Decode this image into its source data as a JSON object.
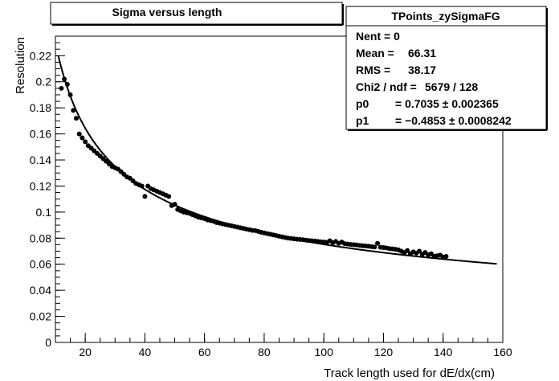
{
  "chart_data": {
    "type": "scatter",
    "title": "Sigma versus length",
    "xlabel": "Track length used for dE/dx(cm)",
    "ylabel": "Resolution",
    "xlim": [
      10,
      160
    ],
    "ylim": [
      0,
      0.235
    ],
    "xticks": [
      20,
      40,
      60,
      80,
      100,
      120,
      140,
      160
    ],
    "yticks": [
      0,
      0.02,
      0.04,
      0.06,
      0.08,
      0.1,
      0.12,
      0.14,
      0.16,
      0.18,
      0.2,
      0.22
    ],
    "x_minor_step": 5,
    "y_minor_step": 0.005,
    "grid": false,
    "stats_box": {
      "name": "TPoints_zySigmaFG",
      "rows": [
        {
          "label": "Nent = 0",
          "value": ""
        },
        {
          "label": "Mean  =",
          "value": "66.31"
        },
        {
          "label": "RMS   =",
          "value": "38.17"
        },
        {
          "label": "Chi2 / ndf =",
          "value": "5679 / 128"
        },
        {
          "label": "p0",
          "value": "= 0.7035 ± 0.002365"
        },
        {
          "label": "p1",
          "value": "= −0.4853 ± 0.0008242"
        }
      ]
    },
    "fit": {
      "p0": 0.7035,
      "p1": -0.4853,
      "x_range": [
        11,
        158
      ]
    },
    "points": {
      "x": [
        12,
        13,
        14,
        15,
        16,
        17,
        18,
        19,
        20,
        21,
        22,
        23,
        24,
        25,
        26,
        27,
        28,
        29,
        30,
        31,
        32,
        33,
        34,
        35,
        36,
        37,
        38,
        39,
        40,
        41,
        42,
        43,
        44,
        45,
        46,
        47,
        48,
        49,
        50,
        51,
        52,
        53,
        54,
        55,
        56,
        57,
        58,
        59,
        60,
        61,
        62,
        63,
        64,
        65,
        66,
        67,
        68,
        69,
        70,
        71,
        72,
        73,
        74,
        75,
        76,
        77,
        78,
        79,
        80,
        81,
        82,
        83,
        84,
        85,
        86,
        87,
        88,
        89,
        90,
        91,
        92,
        93,
        94,
        95,
        96,
        97,
        98,
        99,
        100,
        101,
        102,
        103,
        104,
        105,
        106,
        107,
        108,
        109,
        110,
        111,
        112,
        113,
        114,
        115,
        116,
        117,
        118,
        119,
        120,
        121,
        122,
        123,
        124,
        125,
        126,
        127,
        128,
        129,
        130,
        131,
        132,
        133,
        134,
        135,
        136,
        137,
        138,
        139,
        140,
        141
      ],
      "y": [
        0.195,
        0.202,
        0.198,
        0.19,
        0.178,
        0.172,
        0.16,
        0.157,
        0.154,
        0.151,
        0.149,
        0.147,
        0.145,
        0.143,
        0.141,
        0.139,
        0.137,
        0.135,
        0.134,
        0.133,
        0.131,
        0.129,
        0.127,
        0.126,
        0.124,
        0.122,
        0.121,
        0.12,
        0.112,
        0.12,
        0.118,
        0.117,
        0.116,
        0.115,
        0.114,
        0.113,
        0.112,
        0.105,
        0.106,
        0.102,
        0.101,
        0.1,
        0.0995,
        0.099,
        0.098,
        0.097,
        0.096,
        0.0955,
        0.095,
        0.094,
        0.0935,
        0.093,
        0.092,
        0.0915,
        0.091,
        0.0905,
        0.09,
        0.0895,
        0.089,
        0.0885,
        0.088,
        0.0875,
        0.087,
        0.0865,
        0.086,
        0.0858,
        0.0852,
        0.0845,
        0.084,
        0.0835,
        0.083,
        0.0825,
        0.082,
        0.0815,
        0.081,
        0.0805,
        0.08,
        0.0798,
        0.0795,
        0.0792,
        0.079,
        0.0788,
        0.0785,
        0.0782,
        0.078,
        0.0778,
        0.0775,
        0.0772,
        0.077,
        0.0768,
        0.078,
        0.0765,
        0.0775,
        0.076,
        0.077,
        0.0758,
        0.0755,
        0.0752,
        0.075,
        0.0748,
        0.0745,
        0.0742,
        0.074,
        0.0738,
        0.0735,
        0.0732,
        0.076,
        0.073,
        0.0728,
        0.0725,
        0.072,
        0.0718,
        0.0715,
        0.071,
        0.07,
        0.069,
        0.0705,
        0.068,
        0.0695,
        0.0685,
        0.07,
        0.0675,
        0.069,
        0.0672,
        0.068,
        0.066,
        0.0665,
        0.067,
        0.0655,
        0.066
      ]
    }
  }
}
